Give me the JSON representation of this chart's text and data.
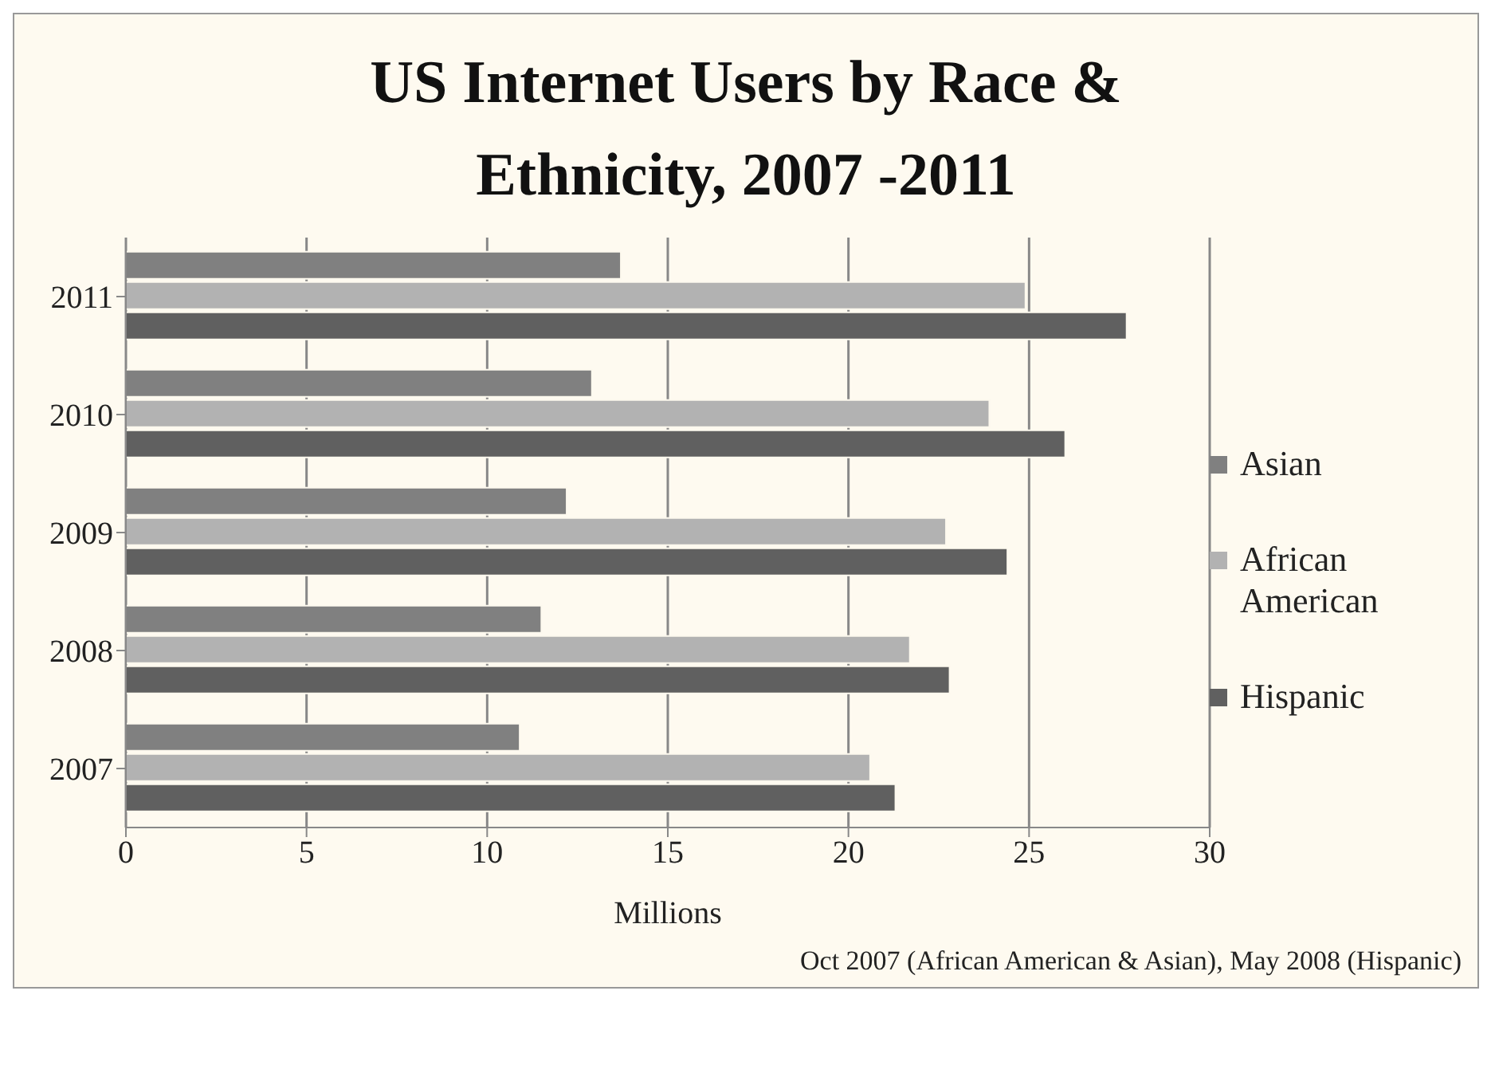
{
  "chart_data": {
    "type": "bar",
    "orientation": "horizontal",
    "title": "US Internet Users by Race & Ethnicity, 2007 -2011",
    "xlabel": "Millions",
    "categories": [
      "2011",
      "2010",
      "2009",
      "2008",
      "2007"
    ],
    "series": [
      {
        "name": "Asian",
        "color": "#808080",
        "values": [
          13.7,
          12.9,
          12.2,
          11.5,
          10.9
        ]
      },
      {
        "name": "African American",
        "color": "#b2b2b2",
        "values": [
          24.9,
          23.9,
          22.7,
          21.7,
          20.6
        ]
      },
      {
        "name": "Hispanic",
        "color": "#606060",
        "values": [
          27.7,
          26.0,
          24.4,
          22.8,
          21.3
        ]
      }
    ],
    "xlim": [
      0,
      30
    ],
    "xticks": [
      0,
      5,
      10,
      15,
      20,
      25,
      30
    ],
    "grid": "x",
    "legend": "right",
    "annotations": [
      "Oct 2007 (African American & Asian), May 2008 (Hispanic)"
    ]
  }
}
